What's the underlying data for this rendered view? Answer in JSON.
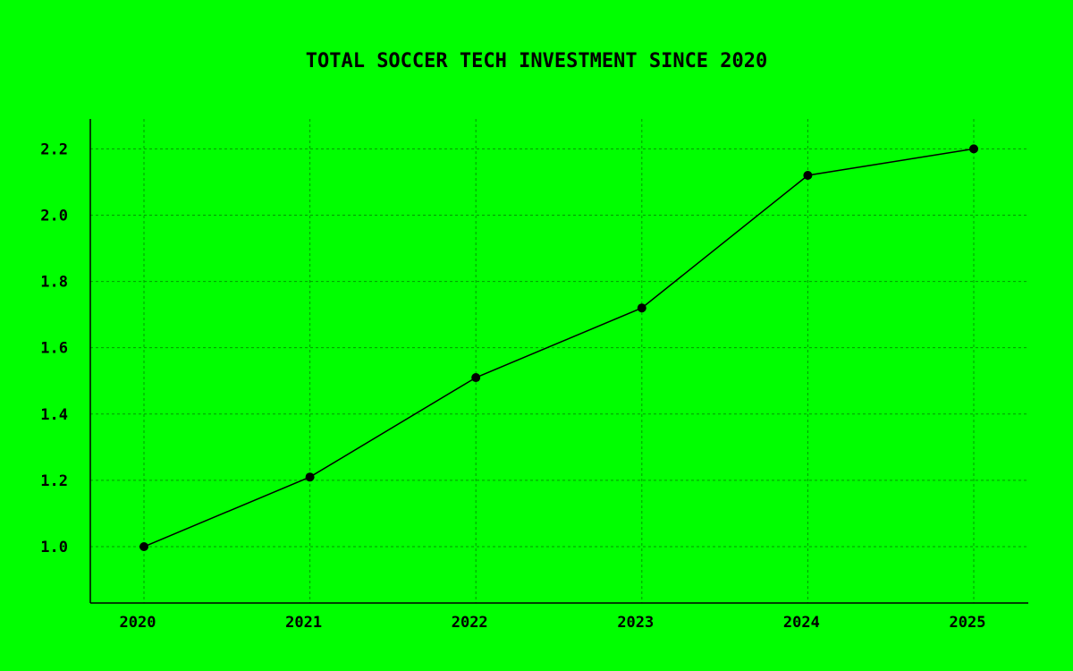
{
  "chart_data": {
    "type": "line",
    "title": "TOTAL SOCCER TECH INVESTMENT SINCE 2020",
    "xlabel": "",
    "ylabel": "",
    "categories": [
      "2020",
      "2021",
      "2022",
      "2023",
      "2024",
      "2025"
    ],
    "series": [
      {
        "values": [
          1.0,
          1.21,
          1.51,
          1.72,
          2.12,
          2.2
        ]
      }
    ],
    "y_ticks": [
      "1.0",
      "1.2",
      "1.4",
      "1.6",
      "1.8",
      "2.0",
      "2.2"
    ],
    "ylim": [
      0.83,
      2.29
    ],
    "grid": true,
    "colors": {
      "background": "#00ff00",
      "line": "#000000",
      "grid": "#009a00"
    }
  }
}
